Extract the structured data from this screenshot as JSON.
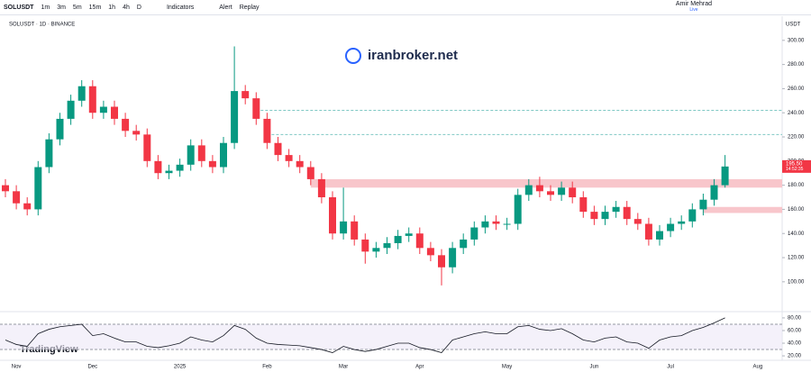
{
  "toolbar": {
    "symbol": "SOLUSDT",
    "intervals": [
      "1m",
      "3m",
      "5m",
      "15m",
      "1h",
      "4h",
      "D"
    ],
    "indicators": "Indicators",
    "alert": "Alert",
    "replay": "Replay",
    "user": "Amir Mehrad",
    "status": "Live"
  },
  "chart_data": {
    "type": "candlestick",
    "title": "SOLUSDT · 1D · BINANCE",
    "watermark": "iranbroker.net",
    "logo": "TradingView",
    "currency": "USDT",
    "categories": [
      null,
      "Nov",
      null,
      null,
      null,
      null,
      null,
      null,
      "Dec",
      null,
      null,
      null,
      null,
      null,
      null,
      null,
      "2025",
      null,
      null,
      null,
      null,
      null,
      null,
      null,
      "Feb",
      null,
      null,
      null,
      null,
      null,
      null,
      "Mar",
      null,
      null,
      null,
      null,
      null,
      null,
      "Apr",
      null,
      null,
      null,
      null,
      null,
      null,
      null,
      "May",
      null,
      null,
      null,
      null,
      null,
      null,
      null,
      "Jun",
      null,
      null,
      null,
      null,
      null,
      null,
      "Jul",
      null,
      null,
      null,
      null,
      null,
      null,
      null,
      "Aug"
    ],
    "open": [
      180,
      175,
      165,
      160,
      195,
      218,
      235,
      250,
      262,
      240,
      245,
      235,
      225,
      222,
      200,
      190,
      192,
      197,
      213,
      200,
      195,
      215,
      258,
      252,
      235,
      215,
      205,
      200,
      195,
      185,
      170,
      140,
      150,
      135,
      125,
      128,
      132,
      138,
      140,
      128,
      122,
      112,
      128,
      135,
      145,
      150,
      148,
      148,
      172,
      180,
      175,
      172,
      178,
      170,
      158,
      152,
      158,
      162,
      152,
      148,
      135,
      142,
      148,
      150,
      160,
      168,
      180,
      null,
      null,
      null
    ],
    "high": [
      185,
      180,
      170,
      200,
      223,
      240,
      255,
      267,
      267,
      250,
      250,
      240,
      230,
      227,
      205,
      197,
      202,
      218,
      218,
      205,
      220,
      295,
      263,
      257,
      240,
      220,
      210,
      205,
      200,
      190,
      175,
      178,
      155,
      140,
      133,
      137,
      143,
      145,
      145,
      133,
      127,
      133,
      140,
      150,
      155,
      155,
      153,
      177,
      185,
      187,
      180,
      183,
      183,
      175,
      163,
      163,
      167,
      167,
      157,
      153,
      147,
      153,
      155,
      165,
      173,
      185,
      205,
      null,
      null,
      null
    ],
    "low": [
      170,
      160,
      155,
      155,
      190,
      213,
      230,
      245,
      235,
      235,
      230,
      220,
      217,
      195,
      185,
      185,
      187,
      192,
      195,
      190,
      190,
      210,
      247,
      230,
      210,
      200,
      195,
      190,
      180,
      165,
      135,
      135,
      130,
      115,
      120,
      123,
      127,
      133,
      123,
      117,
      97,
      107,
      123,
      130,
      140,
      143,
      143,
      143,
      167,
      170,
      167,
      167,
      165,
      153,
      147,
      147,
      153,
      147,
      143,
      130,
      130,
      137,
      143,
      145,
      155,
      163,
      178,
      null,
      null,
      null
    ],
    "close": [
      175,
      165,
      160,
      195,
      218,
      235,
      250,
      262,
      240,
      245,
      235,
      225,
      222,
      200,
      190,
      192,
      197,
      213,
      200,
      195,
      215,
      258,
      252,
      235,
      215,
      205,
      200,
      195,
      185,
      170,
      140,
      150,
      135,
      125,
      128,
      132,
      138,
      140,
      128,
      122,
      112,
      128,
      135,
      145,
      150,
      148,
      148,
      172,
      180,
      175,
      172,
      178,
      170,
      158,
      152,
      158,
      162,
      152,
      148,
      135,
      142,
      148,
      150,
      160,
      168,
      180,
      195.5,
      null,
      null,
      null
    ],
    "colors": {
      "up": "#089981",
      "down": "#f23645"
    },
    "ylim": [
      76,
      320
    ],
    "yticks": [
      {
        "value": 100,
        "label": "100.00"
      },
      {
        "value": 120,
        "label": "120.00"
      },
      {
        "value": 140,
        "label": "140.00"
      },
      {
        "value": 160,
        "label": "160.00"
      },
      {
        "value": 180,
        "label": "180.00"
      },
      {
        "value": 200,
        "label": "200.00"
      },
      {
        "value": 220,
        "label": "220.00"
      },
      {
        "value": 240,
        "label": "240.00"
      },
      {
        "value": 260,
        "label": "260.00"
      },
      {
        "value": 280,
        "label": "280.00"
      },
      {
        "value": 300,
        "label": "300.00"
      }
    ],
    "price_label": {
      "value": 195.5,
      "label": "195.50",
      "countdown": "14:52:35"
    },
    "zones": [
      {
        "from": 178,
        "to": 185,
        "start": 28,
        "color": "#f8c6cb"
      },
      {
        "from": 157,
        "to": 162,
        "start": 64,
        "color": "#f8c6cb"
      }
    ],
    "levels": [
      {
        "value": 242,
        "start": 23,
        "color": "#7fc8c4"
      },
      {
        "value": 222,
        "start": 24,
        "color": "#7fc8c4"
      }
    ],
    "rsi": {
      "values": [
        45,
        38,
        35,
        55,
        62,
        66,
        68,
        70,
        52,
        55,
        48,
        42,
        42,
        35,
        33,
        36,
        40,
        50,
        45,
        42,
        52,
        68,
        62,
        48,
        40,
        38,
        37,
        36,
        33,
        30,
        25,
        35,
        30,
        27,
        30,
        35,
        40,
        40,
        33,
        30,
        25,
        45,
        50,
        55,
        58,
        55,
        55,
        66,
        68,
        62,
        60,
        63,
        55,
        45,
        42,
        48,
        50,
        42,
        40,
        32,
        45,
        50,
        52,
        60,
        65,
        72,
        80,
        null,
        null,
        null
      ],
      "color": "#131722",
      "ylim": [
        13,
        87
      ],
      "band": [
        30,
        70
      ],
      "yticks": [
        {
          "value": 20,
          "label": "20.00"
        },
        {
          "value": 40,
          "label": "40.00"
        },
        {
          "value": 60,
          "label": "60.00"
        },
        {
          "value": 80,
          "label": "80.00"
        }
      ]
    }
  }
}
